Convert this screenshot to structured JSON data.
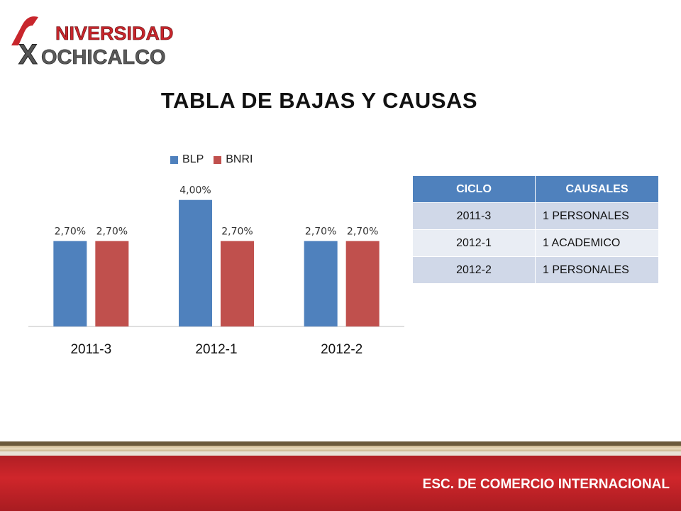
{
  "logo": {
    "line1": "NIVERSIDAD",
    "line2": "OCHICALCO"
  },
  "slide": {
    "title": "TABLA DE BAJAS Y CAUSAS"
  },
  "chart_data": {
    "type": "bar",
    "categories": [
      "2011-3",
      "2012-1",
      "2012-2"
    ],
    "series": [
      {
        "name": "BLP",
        "values": [
          2.7,
          4.0,
          2.7
        ],
        "labels": [
          "2,70%",
          "4,00%",
          "2,70%"
        ],
        "color": "#4f81bd"
      },
      {
        "name": "BNRI",
        "values": [
          2.7,
          2.7,
          2.7
        ],
        "labels": [
          "2,70%",
          "2,70%",
          "2,70%"
        ],
        "color": "#c0504d"
      }
    ],
    "title": "",
    "xlabel": "",
    "ylabel": "",
    "ylim": [
      0,
      4.6
    ],
    "grid": false,
    "legend": "top"
  },
  "table": {
    "headers": [
      "CICLO",
      "CAUSALES"
    ],
    "rows": [
      [
        "2011-3",
        "1 PERSONALES"
      ],
      [
        "2012-1",
        "1 ACADEMICO"
      ],
      [
        "2012-2",
        "1 PERSONALES"
      ]
    ],
    "header_color": "#4f81bd"
  },
  "footer": {
    "text": "ESC. DE COMERCIO INTERNACIONAL",
    "color": "#c8262c"
  }
}
